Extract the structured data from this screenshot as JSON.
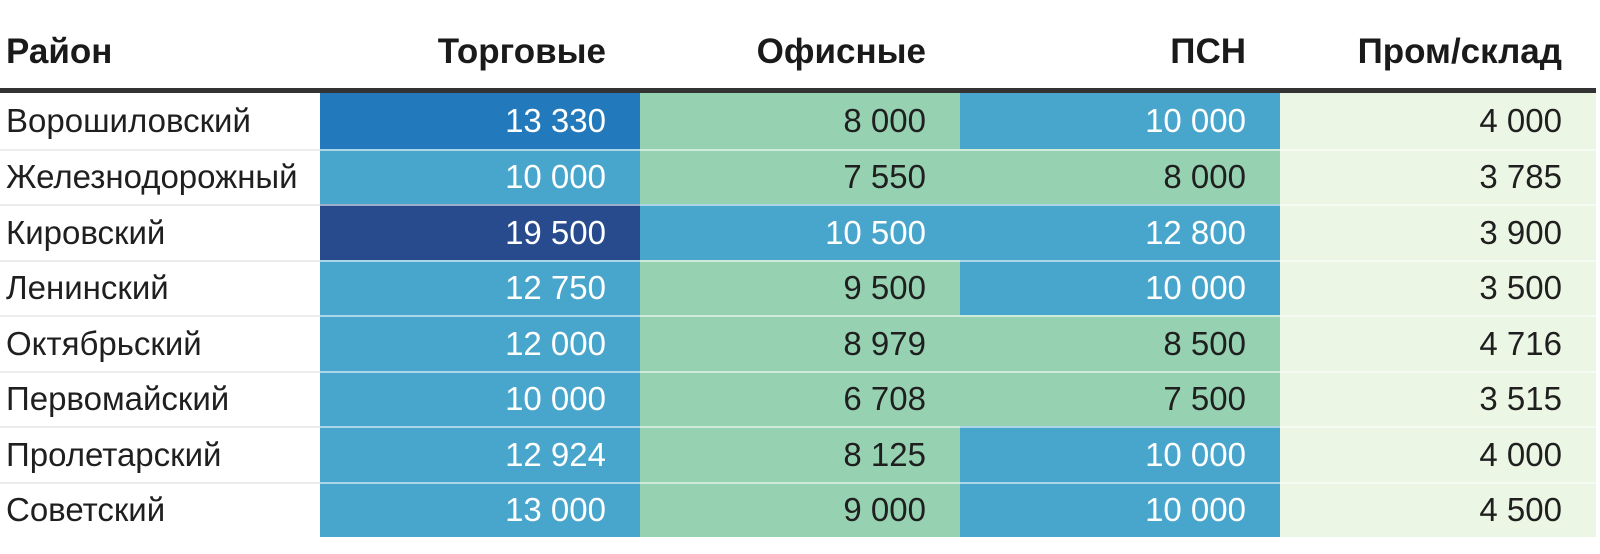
{
  "palette": {
    "deep_blue": "#2279bc",
    "navy": "#274b8d",
    "blue": "#48a5cb",
    "green": "#96d2b2",
    "light_green": "#ecf6e4",
    "header_text": "#1a1a1a",
    "cell_text_dark": "#1f1f1f",
    "cell_text_light": "#ffffff",
    "header_border": "#333333"
  },
  "table": {
    "columns": [
      {
        "label": "Район",
        "align": "left"
      },
      {
        "label": "Торговые",
        "align": "right"
      },
      {
        "label": "Офисные",
        "align": "right"
      },
      {
        "label": "ПСН",
        "align": "right"
      },
      {
        "label": "Пром/склад",
        "align": "right"
      }
    ],
    "rows": [
      {
        "district": "Ворошиловский",
        "cells": [
          {
            "value": "13 330",
            "bg": "deep_blue",
            "text": "light"
          },
          {
            "value": "8 000",
            "bg": "green",
            "text": "dark"
          },
          {
            "value": "10 000",
            "bg": "blue",
            "text": "light"
          },
          {
            "value": "4 000",
            "bg": "light_green",
            "text": "dark"
          }
        ]
      },
      {
        "district": "Железнодорожный",
        "cells": [
          {
            "value": "10 000",
            "bg": "blue",
            "text": "light"
          },
          {
            "value": "7 550",
            "bg": "green",
            "text": "dark"
          },
          {
            "value": "8 000",
            "bg": "green",
            "text": "dark"
          },
          {
            "value": "3 785",
            "bg": "light_green",
            "text": "dark"
          }
        ]
      },
      {
        "district": "Кировский",
        "cells": [
          {
            "value": "19 500",
            "bg": "navy",
            "text": "light"
          },
          {
            "value": "10 500",
            "bg": "blue",
            "text": "light"
          },
          {
            "value": "12 800",
            "bg": "blue",
            "text": "light"
          },
          {
            "value": "3 900",
            "bg": "light_green",
            "text": "dark"
          }
        ]
      },
      {
        "district": "Ленинский",
        "cells": [
          {
            "value": "12 750",
            "bg": "blue",
            "text": "light"
          },
          {
            "value": "9 500",
            "bg": "green",
            "text": "dark"
          },
          {
            "value": "10 000",
            "bg": "blue",
            "text": "light"
          },
          {
            "value": "3 500",
            "bg": "light_green",
            "text": "dark"
          }
        ]
      },
      {
        "district": "Октябрьский",
        "cells": [
          {
            "value": "12 000",
            "bg": "blue",
            "text": "light"
          },
          {
            "value": "8 979",
            "bg": "green",
            "text": "dark"
          },
          {
            "value": "8 500",
            "bg": "green",
            "text": "dark"
          },
          {
            "value": "4 716",
            "bg": "light_green",
            "text": "dark"
          }
        ]
      },
      {
        "district": "Первомайский",
        "cells": [
          {
            "value": "10 000",
            "bg": "blue",
            "text": "light"
          },
          {
            "value": "6 708",
            "bg": "green",
            "text": "dark"
          },
          {
            "value": "7 500",
            "bg": "green",
            "text": "dark"
          },
          {
            "value": "3 515",
            "bg": "light_green",
            "text": "dark"
          }
        ]
      },
      {
        "district": "Пролетарский",
        "cells": [
          {
            "value": "12 924",
            "bg": "blue",
            "text": "light"
          },
          {
            "value": "8 125",
            "bg": "green",
            "text": "dark"
          },
          {
            "value": "10 000",
            "bg": "blue",
            "text": "light"
          },
          {
            "value": "4 000",
            "bg": "light_green",
            "text": "dark"
          }
        ]
      },
      {
        "district": "Советский",
        "cells": [
          {
            "value": "13 000",
            "bg": "blue",
            "text": "light"
          },
          {
            "value": "9 000",
            "bg": "green",
            "text": "dark"
          },
          {
            "value": "10 000",
            "bg": "blue",
            "text": "light"
          },
          {
            "value": "4 500",
            "bg": "light_green",
            "text": "dark"
          }
        ]
      }
    ]
  },
  "chart_data": {
    "type": "heatmap",
    "title": "",
    "row_label_header": "Район",
    "rows": [
      "Ворошиловский",
      "Железнодорожный",
      "Кировский",
      "Ленинский",
      "Октябрьский",
      "Первомайский",
      "Пролетарский",
      "Советский"
    ],
    "columns": [
      "Торговые",
      "Офисные",
      "ПСН",
      "Пром/склад"
    ],
    "values": [
      [
        13330,
        8000,
        10000,
        4000
      ],
      [
        10000,
        7550,
        8000,
        3785
      ],
      [
        19500,
        10500,
        12800,
        3900
      ],
      [
        12750,
        9500,
        10000,
        3500
      ],
      [
        12000,
        8979,
        8500,
        4716
      ],
      [
        10000,
        6708,
        7500,
        3515
      ],
      [
        12924,
        8125,
        10000,
        4000
      ],
      [
        13000,
        9000,
        10000,
        4500
      ]
    ],
    "value_range": [
      3500,
      19500
    ],
    "color_scale_low_to_high": [
      "#ecf6e4",
      "#96d2b2",
      "#48a5cb",
      "#2279bc",
      "#274b8d"
    ],
    "number_format": "space thousands separator"
  }
}
